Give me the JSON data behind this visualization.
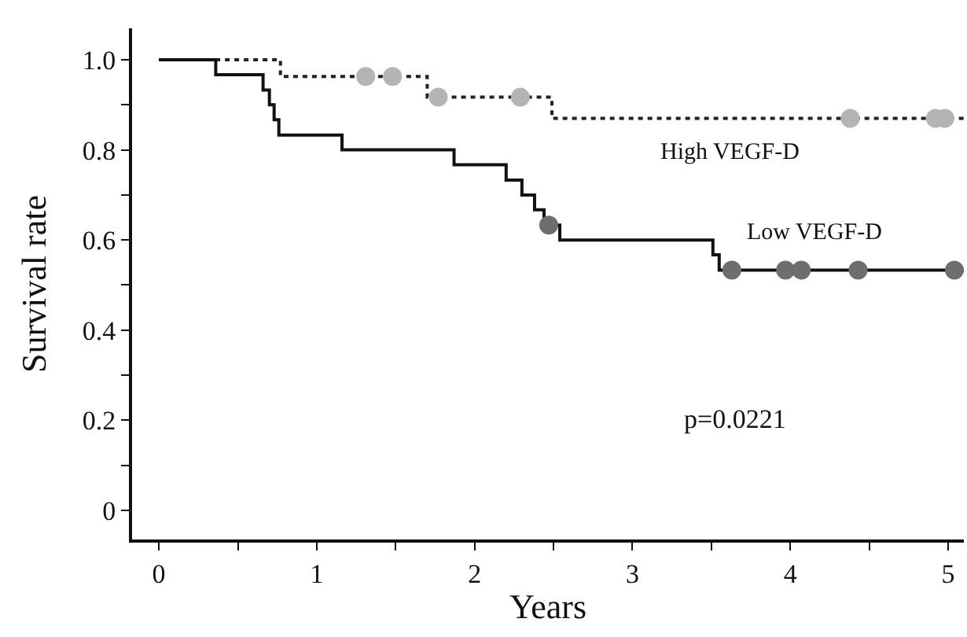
{
  "chart_data": {
    "type": "step",
    "xlabel": "Years",
    "ylabel": "Survival rate",
    "xlim": [
      -0.17,
      5.1
    ],
    "ylim": [
      -0.065,
      1.07
    ],
    "xticks": [
      0,
      {
        "value": 0.5,
        "label": null
      },
      1,
      {
        "value": 1.5,
        "label": null
      },
      2,
      {
        "value": 2.5,
        "label": null
      },
      3,
      {
        "value": 3.5,
        "label": null
      },
      4,
      {
        "value": 4.5,
        "label": null
      },
      5
    ],
    "yticks": [
      0,
      {
        "value": 0.1,
        "label": null
      },
      {
        "value": 0.2,
        "label": "0.2"
      },
      {
        "value": 0.3,
        "label": null
      },
      {
        "value": 0.4,
        "label": "0.4"
      },
      {
        "value": 0.5,
        "label": null
      },
      {
        "value": 0.6,
        "label": "0.6"
      },
      {
        "value": 0.7,
        "label": null
      },
      {
        "value": 0.8,
        "label": "0.8"
      },
      {
        "value": 0.9,
        "label": null
      },
      {
        "value": 1,
        "label": "1.0"
      }
    ],
    "grid": false,
    "legend": false,
    "marker": "none",
    "annotations": [
      "p=0.0221"
    ],
    "series": [
      {
        "name": "High VEGF-D",
        "color": "#222222",
        "line_style": "dotted",
        "x": [
          0,
          0.77,
          1.7,
          2.49,
          5.1
        ],
        "values": [
          1,
          0.963,
          0.917,
          0.87,
          0.87
        ]
      },
      {
        "name": "Low VEGF-D",
        "color": "#111111",
        "line_style": "solid",
        "x": [
          0,
          0.36,
          0.66,
          0.7,
          0.73,
          0.76,
          1.16,
          1.87,
          2.2,
          2.3,
          2.38,
          2.44,
          2.54,
          3.51,
          3.55,
          5.1
        ],
        "values": [
          1,
          0.967,
          0.933,
          0.9,
          0.867,
          0.833,
          0.8,
          0.767,
          0.733,
          0.7,
          0.667,
          0.633,
          0.6,
          0.567,
          0.533,
          0.533
        ]
      },
      {
        "type": "scatter",
        "marker": "circle",
        "color": "#b4b4b4",
        "x": [
          1.31,
          1.48,
          1.77,
          2.29,
          4.38,
          4.92,
          4.98
        ],
        "values": [
          0.963,
          0.963,
          0.917,
          0.917,
          0.87,
          0.87,
          0.87
        ]
      },
      {
        "type": "scatter",
        "marker": "circle",
        "color": "#6e6e6e",
        "x": [
          2.47,
          3.63,
          3.97,
          4.07,
          4.43,
          5.04
        ],
        "values": [
          0.633,
          0.533,
          0.533,
          0.533,
          0.533,
          0.533
        ]
      }
    ]
  }
}
